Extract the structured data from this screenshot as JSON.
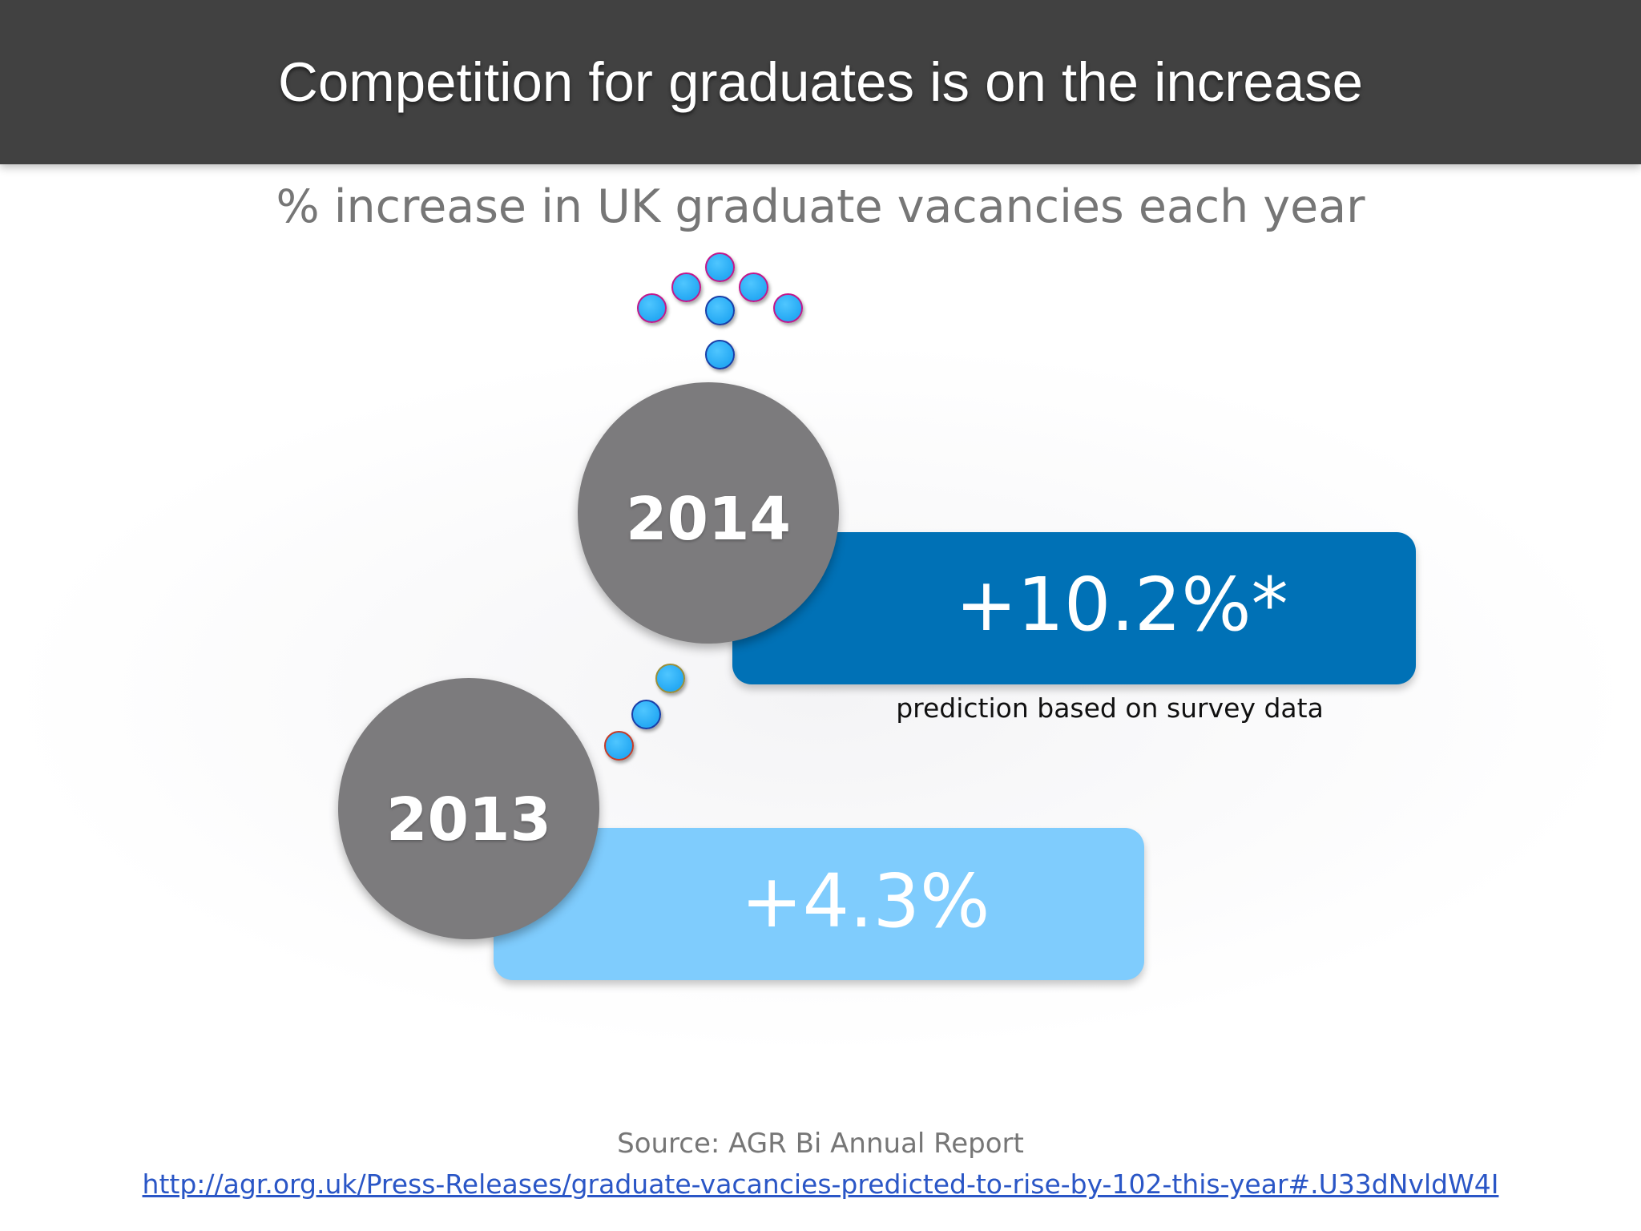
{
  "slide": {
    "title": "Competition for graduates is on the increase",
    "subtitle": "% increase in UK graduate vacancies each year"
  },
  "items": [
    {
      "year": "2014",
      "value": "+10.2%*",
      "note": "prediction based on survey data",
      "color": "#0071b6"
    },
    {
      "year": "2013",
      "value": "+4.3%",
      "color": "#7fccfd"
    }
  ],
  "footer": {
    "source": "Source: AGR Bi Annual Report",
    "link": "http://agr.org.uk/Press-Releases/graduate-vacancies-predicted-to-rise-by-102-this-year#.U33dNvldW4I"
  },
  "colors": {
    "title_bar": "#414141",
    "circle": "#7c7b7d",
    "dot": "#25a9f4"
  },
  "icons": [
    "up-arrow-dots-icon",
    "connector-dots-icon"
  ]
}
